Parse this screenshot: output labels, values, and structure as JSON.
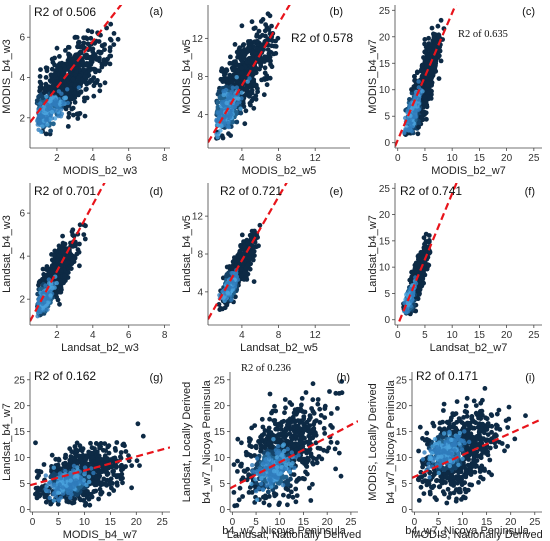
{
  "colors": {
    "point_dark": "#0d2a45",
    "point_light": "#4aa3dd",
    "fit_line": "#e8141b",
    "axis": "#444444"
  },
  "chart_data": [
    {
      "panel": "(a)",
      "type": "scatter",
      "r2_label": "R2 of 0.506",
      "xlabel": "MODIS_b2_w3",
      "ylabel": "MODIS_b4_w3",
      "xlim": [
        0.5,
        8.3
      ],
      "ylim": [
        0.5,
        7.6
      ],
      "xticks": [
        "2",
        "4",
        "6",
        "8"
      ],
      "yticks": [
        "2",
        "4",
        "6"
      ],
      "fit_line": {
        "slope": 1.15,
        "intercept": 1.2
      },
      "cloud": {
        "cx": 2.6,
        "cy": 3.8,
        "sx": 1.1,
        "sy": 1.05,
        "rho": 0.7,
        "xmin": 0.9,
        "xmax": 6.0,
        "ymin": 1.0,
        "ymax": 7.0,
        "dense_x": 1.5,
        "dense_y": 2.3
      }
    },
    {
      "panel": "(b)",
      "type": "scatter",
      "r2_label": "R2 of 0.578",
      "xlabel": "MODIS_b2_w5",
      "ylabel": "MODIS_b4_w5",
      "xlim": [
        0.3,
        15.8
      ],
      "ylim": [
        0.5,
        15.5
      ],
      "xticks": [
        "4",
        "8",
        "12"
      ],
      "yticks": [
        "4",
        "8",
        "12"
      ],
      "fit_line": {
        "slope": 1.62,
        "intercept": 0.6
      },
      "cloud": {
        "cx": 4.0,
        "cy": 7.5,
        "sx": 1.7,
        "sy": 2.8,
        "rho": 0.76,
        "xmin": 1.2,
        "xmax": 8.0,
        "ymin": 1.5,
        "ymax": 15.2,
        "dense_x": 2.4,
        "dense_y": 4.6
      }
    },
    {
      "panel": "(c)",
      "type": "scatter",
      "r2_label": "R2 of 0.635",
      "xlabel": "MODIS_b2_w7",
      "ylabel": "MODIS_b4_w7",
      "xlim": [
        -0.5,
        26.5
      ],
      "ylim": [
        -1,
        26
      ],
      "xticks": [
        "0",
        "5",
        "10",
        "15",
        "20",
        "25"
      ],
      "yticks": [
        "0",
        "5",
        "10",
        "15",
        "20",
        "25"
      ],
      "fit_line": {
        "slope": 2.4,
        "intercept": 0.5
      },
      "cloud": {
        "cx": 4.6,
        "cy": 10.5,
        "sx": 1.5,
        "sy": 4.5,
        "rho": 0.8,
        "xmin": 1.2,
        "xmax": 8.5,
        "ymin": 1.5,
        "ymax": 25.0,
        "dense_x": 2.8,
        "dense_y": 5.8
      }
    },
    {
      "panel": "(d)",
      "type": "scatter",
      "r2_label": "R2 of 0.701",
      "xlabel": "Landsat_b2_w3",
      "ylabel": "Landsat_b4_w3",
      "xlim": [
        0.5,
        8.3
      ],
      "ylim": [
        0.8,
        7.4
      ],
      "xticks": [
        "2",
        "4",
        "6",
        "8"
      ],
      "yticks": [
        "2",
        "4",
        "6"
      ],
      "fit_line": {
        "slope": 1.55,
        "intercept": 0.2
      },
      "cloud": {
        "cx": 1.9,
        "cy": 3.0,
        "sx": 0.55,
        "sy": 0.85,
        "rho": 0.82,
        "xmin": 0.9,
        "xmax": 3.8,
        "ymin": 1.2,
        "ymax": 5.5,
        "dense_x": 1.3,
        "dense_y": 2.0
      }
    },
    {
      "panel": "(e)",
      "type": "scatter",
      "r2_label": "R2 of 0.721",
      "xlabel": "Landsat_b2_w5",
      "ylabel": "Landsat_b4_w5",
      "xlim": [
        0.3,
        15.8
      ],
      "ylim": [
        0.5,
        15.5
      ],
      "xticks": [
        "4",
        "8",
        "12"
      ],
      "yticks": [
        "4",
        "8",
        "12"
      ],
      "fit_line": {
        "slope": 1.68,
        "intercept": 0.6
      },
      "cloud": {
        "cx": 3.6,
        "cy": 6.3,
        "sx": 0.9,
        "sy": 1.7,
        "rho": 0.85,
        "xmin": 1.5,
        "xmax": 6.0,
        "ymin": 2.0,
        "ymax": 11.5,
        "dense_x": 2.7,
        "dense_y": 4.6
      }
    },
    {
      "panel": "(f)",
      "type": "scatter",
      "r2_label": "R2 of 0.741",
      "xlabel": "Landsat_b2_w7",
      "ylabel": "Landsat_b4_w7",
      "xlim": [
        -0.5,
        26.5
      ],
      "ylim": [
        -1,
        26
      ],
      "xticks": [
        "0",
        "5",
        "10",
        "15",
        "20",
        "25"
      ],
      "yticks": [
        "0",
        "5",
        "10",
        "15",
        "20",
        "25"
      ],
      "fit_line": {
        "slope": 2.5,
        "intercept": -1.0
      },
      "cloud": {
        "cx": 3.5,
        "cy": 7.5,
        "sx": 1.0,
        "sy": 3.0,
        "rho": 0.86,
        "xmin": 1.0,
        "xmax": 6.3,
        "ymin": 1.0,
        "ymax": 17.0,
        "dense_x": 2.2,
        "dense_y": 4.0
      }
    },
    {
      "panel": "(g)",
      "type": "scatter",
      "r2_label": "R2 of 0.162",
      "xlabel": "MODIS_b4_w7",
      "ylabel": "Landsat_b4_w7",
      "xlim": [
        -0.5,
        26.5
      ],
      "ylim": [
        -0.5,
        26.5
      ],
      "xticks": [
        "0",
        "5",
        "10",
        "15",
        "20",
        "25"
      ],
      "yticks": [
        "0",
        "5",
        "10",
        "15",
        "20",
        "25"
      ],
      "fit_line": {
        "slope": 0.27,
        "intercept": 4.8
      },
      "cloud": {
        "cx": 9.0,
        "cy": 6.5,
        "sx": 4.3,
        "sy": 2.8,
        "rho": 0.42,
        "xmin": 0.5,
        "xmax": 25.0,
        "ymin": 0.3,
        "ymax": 18.5,
        "dense_x": 7.0,
        "dense_y": 5.2
      }
    },
    {
      "panel": "(h)",
      "type": "scatter",
      "r2_label": "R2 of 0.236",
      "xlabel": "Landsat, Nationally Derived",
      "ylabel": "Landsat, Locally Derived",
      "ylabel2": "b4_w7_Nicoya Peninsula",
      "caption": "b4_w7_Nicoya Peninsula",
      "xlim": [
        -0.5,
        26.5
      ],
      "ylim": [
        -0.5,
        26.5
      ],
      "xticks": [
        "0",
        "5",
        "10",
        "15",
        "20",
        "25"
      ],
      "yticks": [
        "0",
        "5",
        "10",
        "15",
        "20",
        "25"
      ],
      "fit_line": {
        "slope": 0.48,
        "intercept": 4.3
      },
      "cloud": {
        "cx": 10.5,
        "cy": 10.5,
        "sx": 4.8,
        "sy": 4.8,
        "rho": 0.5,
        "xmin": 0.3,
        "xmax": 25.5,
        "ymin": 0.3,
        "ymax": 25.0,
        "dense_x": 8.5,
        "dense_y": 7.5
      }
    },
    {
      "panel": "(i)",
      "type": "scatter",
      "r2_label": "R2 of 0.171",
      "xlabel": "MODIS, Nationally Derived",
      "ylabel": "MODIS, Locally Derived",
      "ylabel2": "b4_w7_Nicoya Peninsula",
      "caption": "b4_w7_Nicoya Peninsula",
      "xlim": [
        -0.5,
        26.5
      ],
      "ylim": [
        -0.5,
        26.5
      ],
      "xticks": [
        "0",
        "5",
        "10",
        "15",
        "20",
        "25"
      ],
      "yticks": [
        "0",
        "5",
        "10",
        "15",
        "20",
        "25"
      ],
      "fit_line": {
        "slope": 0.42,
        "intercept": 6.3
      },
      "cloud": {
        "cx": 9.0,
        "cy": 11.0,
        "sx": 4.2,
        "sy": 4.2,
        "rho": 0.45,
        "xmin": 0.8,
        "xmax": 24.5,
        "ymin": 1.0,
        "ymax": 24.5,
        "dense_x": 6.5,
        "dense_y": 11.0
      }
    }
  ]
}
